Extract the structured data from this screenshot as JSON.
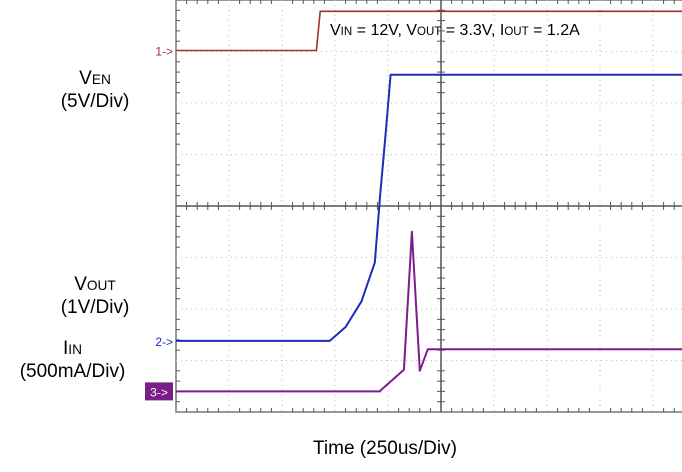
{
  "chart_data": {
    "type": "line",
    "title": "",
    "xlabel": "Time (250us/Div)",
    "ylabel": "",
    "grid": true,
    "divisions": {
      "x": 10,
      "y": 8
    },
    "conditions": {
      "vin": {
        "symbol": "V",
        "sub": "IN",
        "value": "12V"
      },
      "vout": {
        "symbol": "V",
        "sub": "OUT",
        "value": "3.3V"
      },
      "iout": {
        "symbol": "I",
        "sub": "OUT",
        "value": "1.2A"
      }
    },
    "series": [
      {
        "channel": "1",
        "marker": "1->",
        "color": "#a0322e",
        "label": {
          "symbol": "V",
          "sub": "EN",
          "scale": "(5V/Div)"
        },
        "x": [
          0,
          2.65,
          2.72,
          10
        ],
        "y": [
          7.02,
          7.02,
          7.78,
          7.78
        ]
      },
      {
        "channel": "2",
        "marker": "2->",
        "color": "#1b2eb8",
        "label": {
          "symbol": "V",
          "sub": "OUT",
          "scale": "(1V/Div)"
        },
        "x": [
          0,
          2.9,
          3.2,
          3.5,
          3.75,
          3.85,
          3.95,
          4.05,
          10
        ],
        "y": [
          1.38,
          1.38,
          1.65,
          2.15,
          2.9,
          4.2,
          5.35,
          6.55,
          6.55
        ]
      },
      {
        "channel": "3",
        "marker": "3->",
        "color": "#7a1f8a",
        "label": {
          "symbol": "I",
          "sub": "IN",
          "scale": "(500mA/Div)"
        },
        "x": [
          0,
          3.85,
          3.86,
          4.3,
          4.45,
          4.6,
          4.75,
          10
        ],
        "y": [
          0.4,
          0.4,
          0.42,
          0.82,
          3.5,
          0.8,
          1.22,
          1.22
        ]
      }
    ]
  }
}
